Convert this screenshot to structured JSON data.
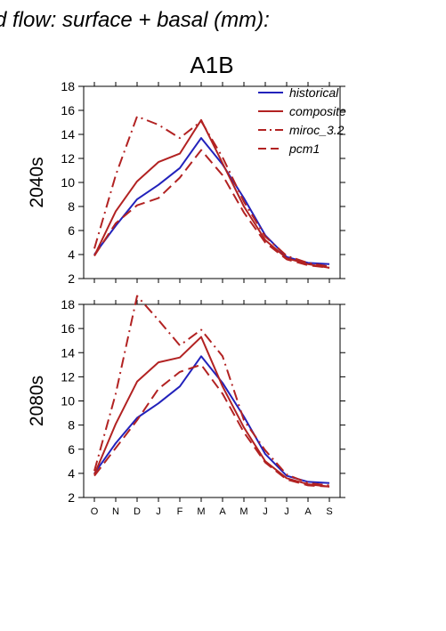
{
  "chart_data": {
    "type": "line",
    "title": "d flow: surface + basal (mm):",
    "subtitle": "A1B",
    "categories": [
      "O",
      "N",
      "D",
      "J",
      "F",
      "M",
      "A",
      "M",
      "J",
      "J",
      "A",
      "S"
    ],
    "ylim": [
      2,
      18
    ],
    "yticks": [
      "2",
      "4",
      "6",
      "8",
      "10",
      "12",
      "14",
      "16",
      "18"
    ],
    "grid": false,
    "legend_position": "top-right",
    "colors": {
      "historical": "#2222bb",
      "red": "#b22222"
    },
    "legend": [
      {
        "label": "historical",
        "color": "#2222bb",
        "dash": "solid"
      },
      {
        "label": "composite",
        "color": "#b22222",
        "dash": "solid"
      },
      {
        "label": "miroc_3.2",
        "color": "#b22222",
        "dash": "dashdot"
      },
      {
        "label": "pcm1",
        "color": "#b22222",
        "dash": "dash"
      }
    ],
    "panels": [
      {
        "ylabel": "2040s",
        "series": [
          {
            "name": "historical",
            "values": [
              4.0,
              6.4,
              8.6,
              9.8,
              11.2,
              13.7,
              11.5,
              8.7,
              5.6,
              3.8,
              3.3,
              3.2
            ]
          },
          {
            "name": "composite",
            "values": [
              3.9,
              7.6,
              10.1,
              11.7,
              12.4,
              15.2,
              11.6,
              8.0,
              5.2,
              3.7,
              3.2,
              2.9
            ]
          },
          {
            "name": "miroc_3.2",
            "values": [
              4.5,
              10.6,
              15.5,
              14.8,
              13.7,
              15.1,
              12.1,
              8.4,
              5.5,
              3.9,
              3.3,
              3.0
            ]
          },
          {
            "name": "pcm1",
            "values": [
              3.9,
              6.6,
              8.1,
              8.7,
              10.4,
              12.7,
              10.6,
              7.5,
              5.0,
              3.6,
              3.1,
              2.9
            ]
          }
        ]
      },
      {
        "ylabel": "2080s",
        "series": [
          {
            "name": "historical",
            "values": [
              4.0,
              6.5,
              8.6,
              9.8,
              11.2,
              13.7,
              11.5,
              8.7,
              5.6,
              3.8,
              3.3,
              3.2
            ]
          },
          {
            "name": "composite",
            "values": [
              3.9,
              8.1,
              11.6,
              13.2,
              13.6,
              15.3,
              11.2,
              7.8,
              5.0,
              3.6,
              3.1,
              2.9
            ]
          },
          {
            "name": "miroc_3.2",
            "values": [
              4.2,
              10.6,
              18.7,
              16.7,
              14.6,
              15.9,
              13.7,
              8.4,
              5.9,
              3.9,
              3.2,
              3.0
            ]
          },
          {
            "name": "pcm1",
            "values": [
              3.8,
              6.1,
              8.4,
              11.0,
              12.4,
              13.0,
              10.6,
              7.4,
              4.9,
              3.5,
              3.0,
              2.9
            ]
          }
        ]
      }
    ]
  }
}
